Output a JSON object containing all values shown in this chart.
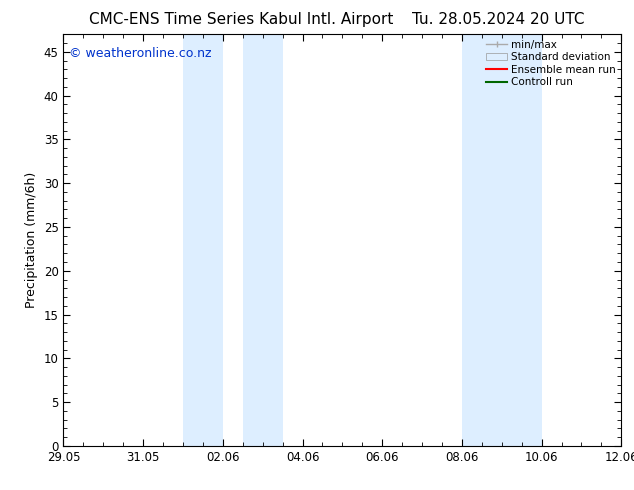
{
  "title_left": "CMC-ENS Time Series Kabul Intl. Airport",
  "title_right": "Tu. 28.05.2024 20 UTC",
  "ylabel": "Precipitation (mm/6h)",
  "ylim": [
    0,
    47
  ],
  "yticks": [
    0,
    5,
    10,
    15,
    20,
    25,
    30,
    35,
    40,
    45
  ],
  "shaded_bands": [
    {
      "x_start": 3.0,
      "x_end": 4.0
    },
    {
      "x_start": 4.5,
      "x_end": 5.5
    },
    {
      "x_start": 10.0,
      "x_end": 11.0
    },
    {
      "x_start": 11.0,
      "x_end": 12.0
    }
  ],
  "shade_color": "#ddeeff",
  "background_color": "#ffffff",
  "plot_bg_color": "#ffffff",
  "copyright_text": "© weatheronline.co.nz",
  "copyright_color": "#0033cc",
  "legend_items": [
    {
      "label": "min/max",
      "color": "#aaaaaa",
      "style": "minmax"
    },
    {
      "label": "Standard deviation",
      "color": "#ddeeff",
      "style": "box"
    },
    {
      "label": "Ensemble mean run",
      "color": "#ff0000",
      "style": "line"
    },
    {
      "label": "Controll run",
      "color": "#006600",
      "style": "line"
    }
  ],
  "title_fontsize": 11,
  "tick_fontsize": 8.5,
  "ylabel_fontsize": 9,
  "copyright_fontsize": 9,
  "legend_fontsize": 7.5,
  "grid_color": "#cccccc",
  "tick_color": "#000000",
  "spine_color": "#000000",
  "x_tick_positions": [
    0,
    2,
    4,
    6,
    8,
    10,
    12,
    14
  ],
  "x_tick_labels": [
    "29.05",
    "31.05",
    "02.06",
    "04.06",
    "06.06",
    "08.06",
    "10.06",
    "12.06"
  ],
  "xlim": [
    0,
    14
  ]
}
